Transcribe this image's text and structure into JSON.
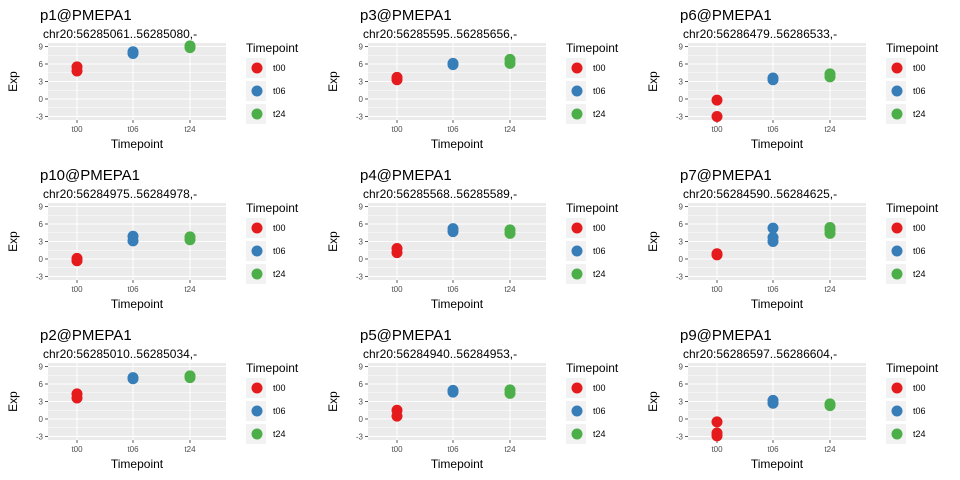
{
  "chart_data": [
    {
      "type": "scatter",
      "title": "p1@PMEPA1",
      "subtitle": "chr20:56285061..56285080,-",
      "xlabel": "Timepoint",
      "ylabel": "Exp",
      "categories": [
        "t00",
        "t06",
        "t24"
      ],
      "yticks": [
        -3,
        0,
        3,
        6,
        9
      ],
      "ylim": [
        -3.6,
        9.6
      ],
      "legend": {
        "title": "Timepoint",
        "placement": "right"
      },
      "series": [
        {
          "name": "t00",
          "x": "t00",
          "values": [
            4.8,
            5.5
          ]
        },
        {
          "name": "t06",
          "x": "t06",
          "values": [
            7.8,
            8.1
          ]
        },
        {
          "name": "t24",
          "x": "t24",
          "values": [
            8.8,
            9.1
          ]
        }
      ]
    },
    {
      "type": "scatter",
      "title": "p3@PMEPA1",
      "subtitle": "chr20:56285595..56285656,-",
      "xlabel": "Timepoint",
      "ylabel": "Exp",
      "categories": [
        "t00",
        "t06",
        "t24"
      ],
      "yticks": [
        -3,
        0,
        3,
        6,
        9
      ],
      "ylim": [
        -3.6,
        9.6
      ],
      "legend": {
        "title": "Timepoint",
        "placement": "right"
      },
      "series": [
        {
          "name": "t00",
          "x": "t00",
          "values": [
            3.3,
            3.7
          ]
        },
        {
          "name": "t06",
          "x": "t06",
          "values": [
            5.9,
            6.1
          ]
        },
        {
          "name": "t24",
          "x": "t24",
          "values": [
            6.1,
            6.8
          ]
        }
      ]
    },
    {
      "type": "scatter",
      "title": "p6@PMEPA1",
      "subtitle": "chr20:56286479..56286533,-",
      "xlabel": "Timepoint",
      "ylabel": "Exp",
      "categories": [
        "t00",
        "t06",
        "t24"
      ],
      "yticks": [
        -3,
        0,
        3,
        6,
        9
      ],
      "ylim": [
        -3.6,
        9.6
      ],
      "legend": {
        "title": "Timepoint",
        "placement": "right"
      },
      "series": [
        {
          "name": "t00",
          "x": "t00",
          "values": [
            -3.0,
            -0.2
          ]
        },
        {
          "name": "t06",
          "x": "t06",
          "values": [
            3.3,
            3.6
          ]
        },
        {
          "name": "t24",
          "x": "t24",
          "values": [
            3.8,
            4.3
          ]
        }
      ]
    },
    {
      "type": "scatter",
      "title": "p10@PMEPA1",
      "subtitle": "chr20:56284975..56284978,-",
      "xlabel": "Timepoint",
      "ylabel": "Exp",
      "categories": [
        "t00",
        "t06",
        "t24"
      ],
      "yticks": [
        -3,
        0,
        3,
        6,
        9
      ],
      "ylim": [
        -3.6,
        9.6
      ],
      "legend": {
        "title": "Timepoint",
        "placement": "right"
      },
      "series": [
        {
          "name": "t00",
          "x": "t00",
          "values": [
            -0.3,
            0.1
          ]
        },
        {
          "name": "t06",
          "x": "t06",
          "values": [
            3.1,
            3.9
          ]
        },
        {
          "name": "t24",
          "x": "t24",
          "values": [
            3.3,
            3.8
          ]
        }
      ]
    },
    {
      "type": "scatter",
      "title": "p4@PMEPA1",
      "subtitle": "chr20:56285568..56285589,-",
      "xlabel": "Timepoint",
      "ylabel": "Exp",
      "categories": [
        "t00",
        "t06",
        "t24"
      ],
      "yticks": [
        -3,
        0,
        3,
        6,
        9
      ],
      "ylim": [
        -3.6,
        9.6
      ],
      "legend": {
        "title": "Timepoint",
        "placement": "right"
      },
      "series": [
        {
          "name": "t00",
          "x": "t00",
          "values": [
            1.1,
            1.8
          ]
        },
        {
          "name": "t06",
          "x": "t06",
          "values": [
            4.7,
            5.2
          ]
        },
        {
          "name": "t24",
          "x": "t24",
          "values": [
            4.4,
            5.0
          ]
        }
      ]
    },
    {
      "type": "scatter",
      "title": "p7@PMEPA1",
      "subtitle": "chr20:56284590..56284625,-",
      "xlabel": "Timepoint",
      "ylabel": "Exp",
      "categories": [
        "t00",
        "t06",
        "t24"
      ],
      "yticks": [
        -3,
        0,
        3,
        6,
        9
      ],
      "ylim": [
        -3.6,
        9.6
      ],
      "legend": {
        "title": "Timepoint",
        "placement": "right"
      },
      "series": [
        {
          "name": "t00",
          "x": "t00",
          "values": [
            0.7,
            0.9
          ]
        },
        {
          "name": "t06",
          "x": "t06",
          "values": [
            3.0,
            3.7,
            5.3
          ]
        },
        {
          "name": "t24",
          "x": "t24",
          "values": [
            4.4,
            5.0,
            5.4
          ]
        }
      ]
    },
    {
      "type": "scatter",
      "title": "p2@PMEPA1",
      "subtitle": "chr20:56285010..56285034,-",
      "xlabel": "Timepoint",
      "ylabel": "Exp",
      "categories": [
        "t00",
        "t06",
        "t24"
      ],
      "yticks": [
        -3,
        0,
        3,
        6,
        9
      ],
      "ylim": [
        -3.6,
        9.6
      ],
      "legend": {
        "title": "Timepoint",
        "placement": "right"
      },
      "series": [
        {
          "name": "t00",
          "x": "t00",
          "values": [
            3.6,
            4.3
          ]
        },
        {
          "name": "t06",
          "x": "t06",
          "values": [
            6.9,
            7.1
          ]
        },
        {
          "name": "t24",
          "x": "t24",
          "values": [
            7.1,
            7.4
          ]
        }
      ]
    },
    {
      "type": "scatter",
      "title": "p5@PMEPA1",
      "subtitle": "chr20:56284940..56284953,-",
      "xlabel": "Timepoint",
      "ylabel": "Exp",
      "categories": [
        "t00",
        "t06",
        "t24"
      ],
      "yticks": [
        -3,
        0,
        3,
        6,
        9
      ],
      "ylim": [
        -3.6,
        9.6
      ],
      "legend": {
        "title": "Timepoint",
        "placement": "right"
      },
      "series": [
        {
          "name": "t00",
          "x": "t00",
          "values": [
            0.5,
            1.5
          ]
        },
        {
          "name": "t06",
          "x": "t06",
          "values": [
            4.6,
            4.9
          ]
        },
        {
          "name": "t24",
          "x": "t24",
          "values": [
            4.4,
            5.0
          ]
        }
      ]
    },
    {
      "type": "scatter",
      "title": "p9@PMEPA1",
      "subtitle": "chr20:56286597..56286604,-",
      "xlabel": "Timepoint",
      "ylabel": "Exp",
      "categories": [
        "t00",
        "t06",
        "t24"
      ],
      "yticks": [
        -3,
        0,
        3,
        6,
        9
      ],
      "ylim": [
        -3.6,
        9.6
      ],
      "legend": {
        "title": "Timepoint",
        "placement": "right"
      },
      "series": [
        {
          "name": "t00",
          "x": "t00",
          "values": [
            -2.9,
            -2.4,
            -0.5
          ]
        },
        {
          "name": "t06",
          "x": "t06",
          "values": [
            2.7,
            3.2
          ]
        },
        {
          "name": "t24",
          "x": "t24",
          "values": [
            2.3,
            2.6
          ]
        }
      ]
    }
  ],
  "colors": {
    "t00": "#e41a1c",
    "t06": "#377eb8",
    "t24": "#4daf4a",
    "panel_bg": "#ebebeb",
    "grid": "#ffffff"
  }
}
